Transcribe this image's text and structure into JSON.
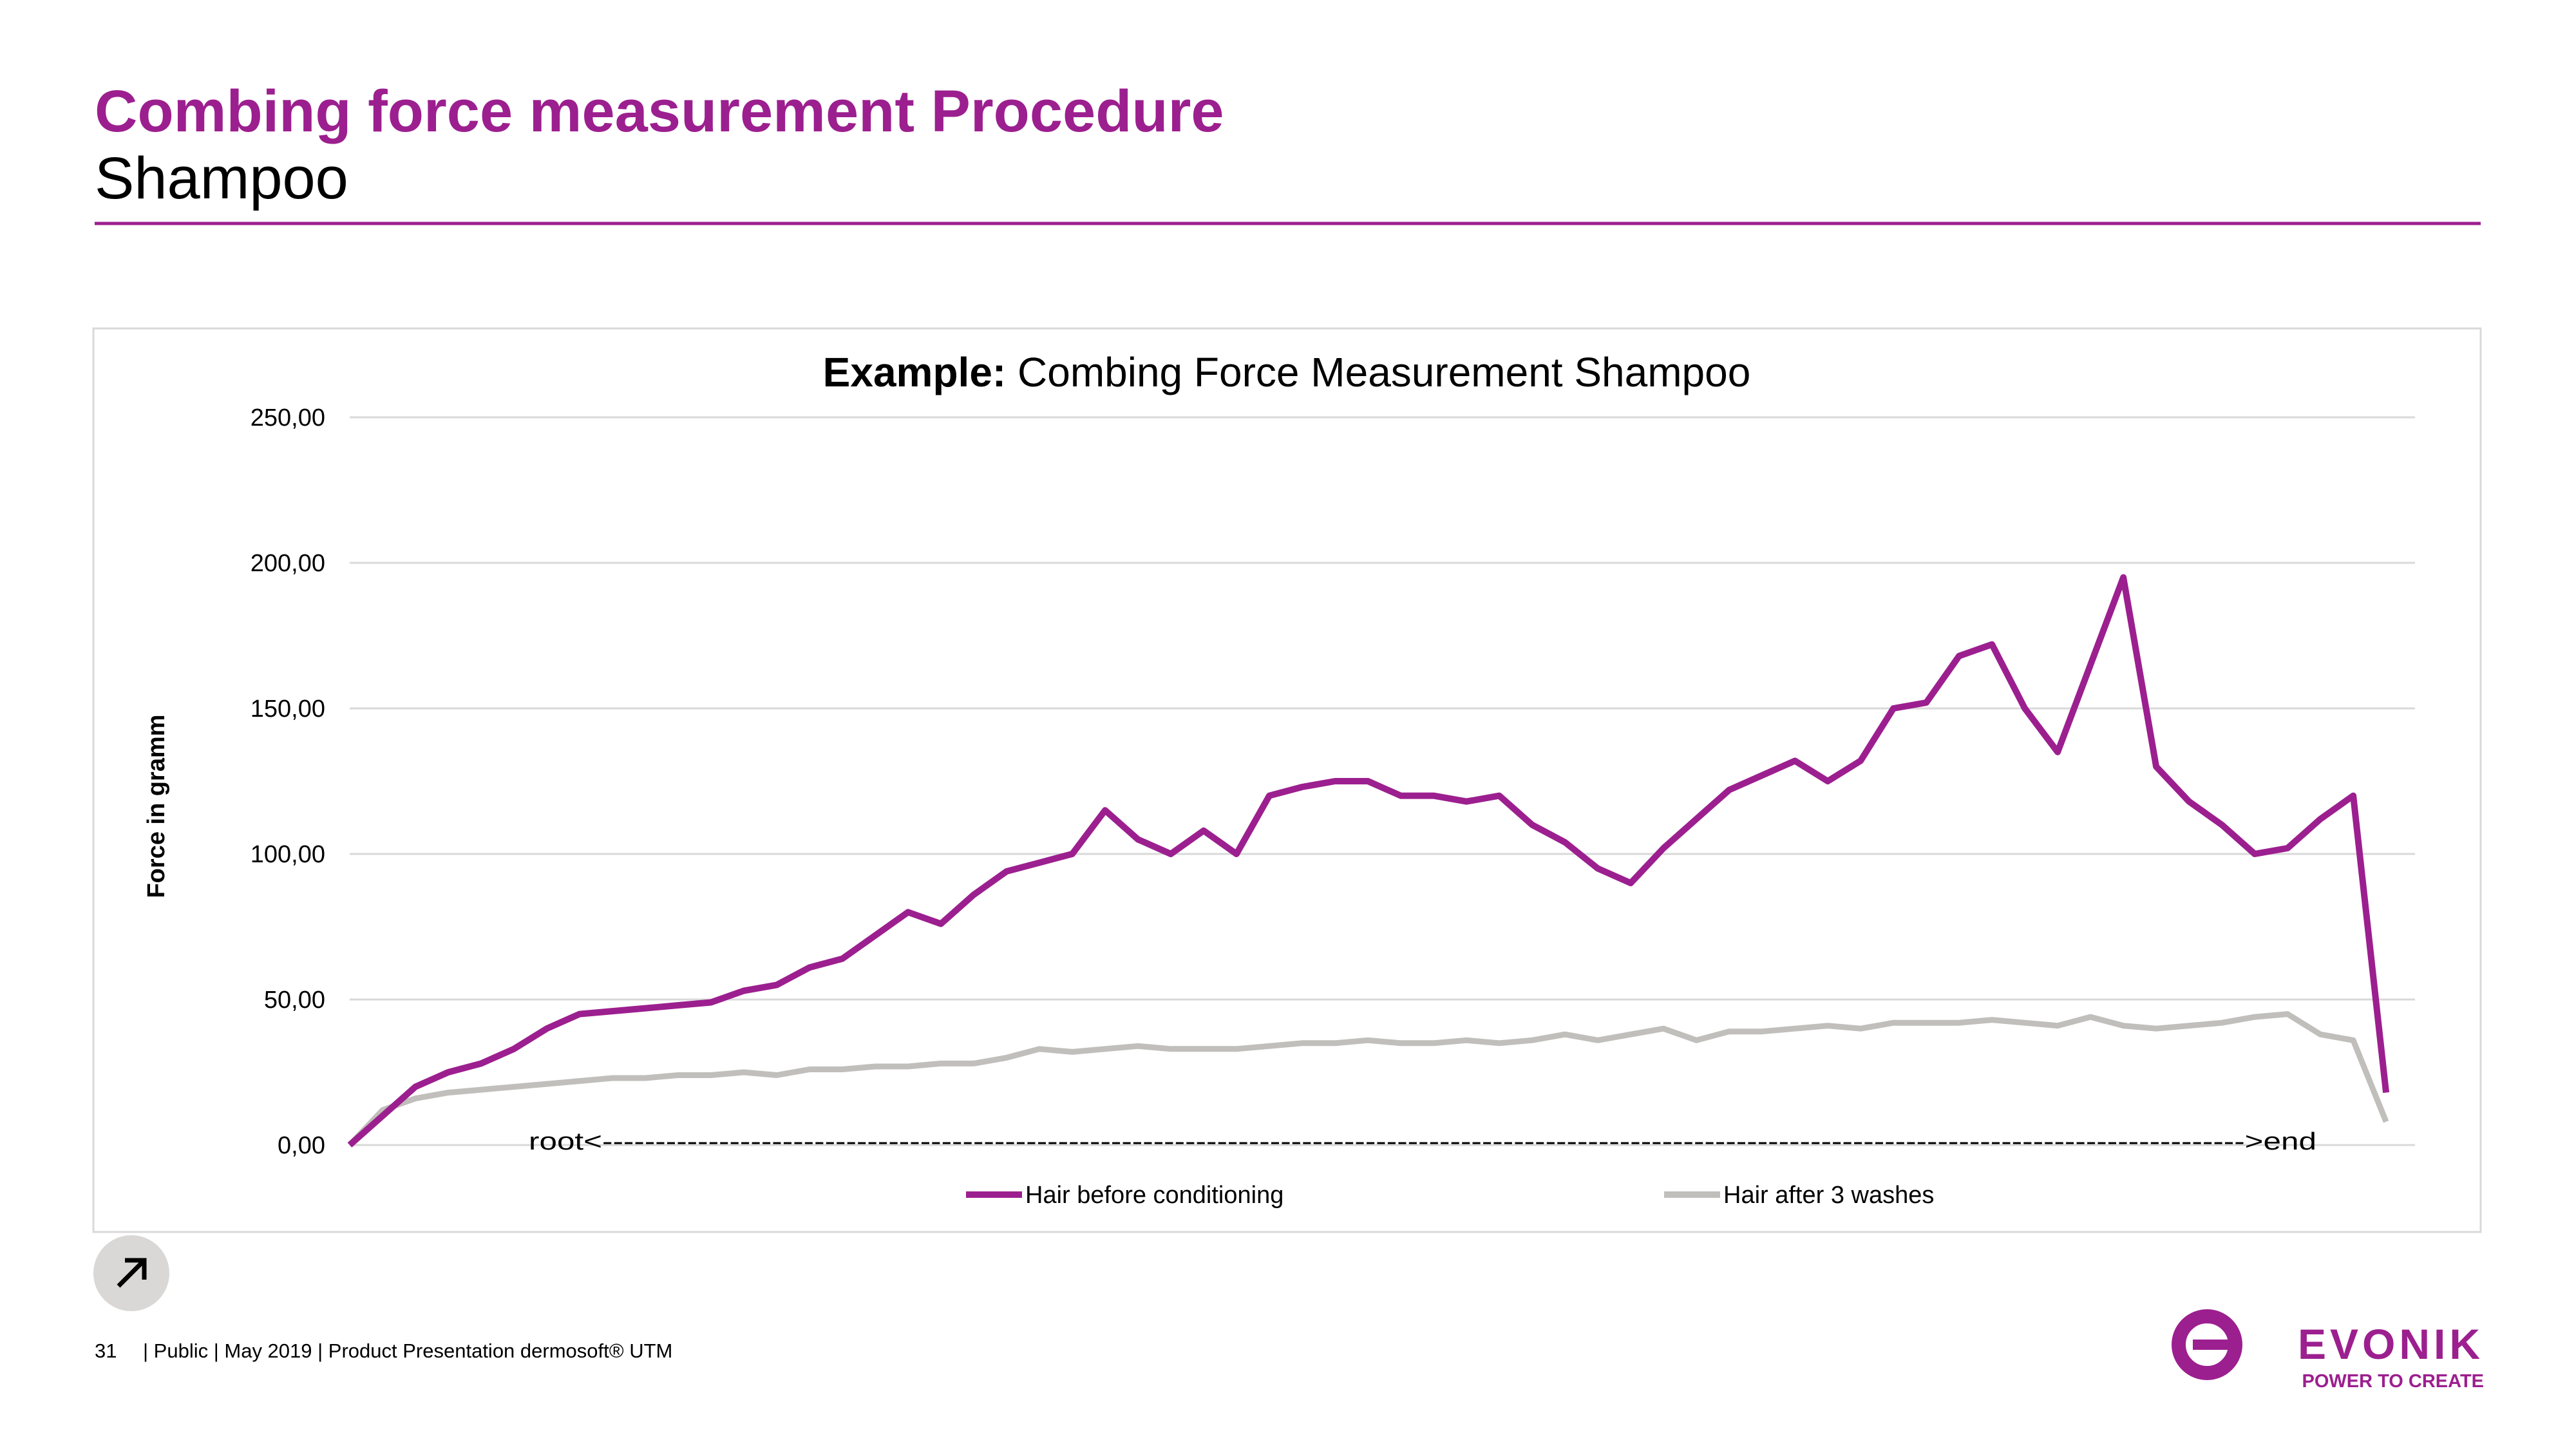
{
  "header": {
    "title": "Combing force measurement Procedure",
    "subtitle": "Shampoo"
  },
  "chart_data": {
    "type": "line",
    "title": {
      "lead": "Example:",
      "text": "Combing Force Measurement Shampoo"
    },
    "y_label": "Force in gramm",
    "annotation": "root<----------------------------------------------------------------------------------------------------------------------------------------------------------->end",
    "categories": [
      null,
      null,
      null,
      null,
      null,
      null,
      null,
      null,
      null,
      null,
      null,
      null,
      null,
      null,
      null,
      null,
      null,
      null,
      null,
      null,
      null,
      null,
      null,
      null,
      null,
      null,
      null,
      null,
      null,
      null,
      null,
      null,
      null,
      null,
      null,
      null,
      null,
      null,
      null,
      null,
      null,
      null,
      null,
      null,
      null,
      null,
      null,
      null,
      null,
      null,
      null,
      null,
      null,
      null,
      null,
      null,
      null,
      null,
      null,
      null,
      null,
      null,
      null
    ],
    "series": [
      {
        "name": "Hair before conditioning",
        "color": "#9c1f8f",
        "values": [
          0,
          10,
          20,
          25,
          28,
          33,
          40,
          45,
          46,
          47,
          48,
          49,
          53,
          55,
          61,
          64,
          72,
          80,
          76,
          86,
          94,
          97,
          100,
          115,
          105,
          100,
          108,
          100,
          120,
          123,
          125,
          125,
          120,
          120,
          118,
          120,
          110,
          104,
          95,
          90,
          102,
          112,
          122,
          127,
          132,
          125,
          132,
          150,
          152,
          168,
          172,
          150,
          135,
          165,
          195,
          130,
          118,
          110,
          100,
          102,
          112,
          120,
          18
        ]
      },
      {
        "name": "Hair after 3 washes",
        "color": "#c0bfbb",
        "values": [
          0,
          12,
          16,
          18,
          19,
          20,
          21,
          22,
          23,
          23,
          24,
          24,
          25,
          24,
          26,
          26,
          27,
          27,
          28,
          28,
          30,
          33,
          32,
          33,
          34,
          33,
          33,
          33,
          34,
          35,
          35,
          36,
          35,
          35,
          36,
          35,
          36,
          38,
          36,
          38,
          40,
          36,
          39,
          39,
          40,
          41,
          40,
          42,
          42,
          42,
          43,
          42,
          41,
          44,
          41,
          40,
          41,
          42,
          44,
          45,
          38,
          36,
          8
        ]
      }
    ],
    "ylim": [
      0,
      250
    ],
    "yticks": [
      {
        "value": 0,
        "label": "0,00"
      },
      {
        "value": 50,
        "label": "50,00"
      },
      {
        "value": 100,
        "label": "100,00"
      },
      {
        "value": 150,
        "label": "150,00"
      },
      {
        "value": 200,
        "label": "200,00"
      },
      {
        "value": 250,
        "label": "250,00"
      }
    ],
    "grid": true,
    "legend": "bottom"
  },
  "footer": {
    "page": "31",
    "text": "|  Public  |  May 2019  |  Product Presentation dermosoft® UTM"
  },
  "logo": {
    "name": "EVONIK",
    "tagline": "POWER TO CREATE"
  }
}
